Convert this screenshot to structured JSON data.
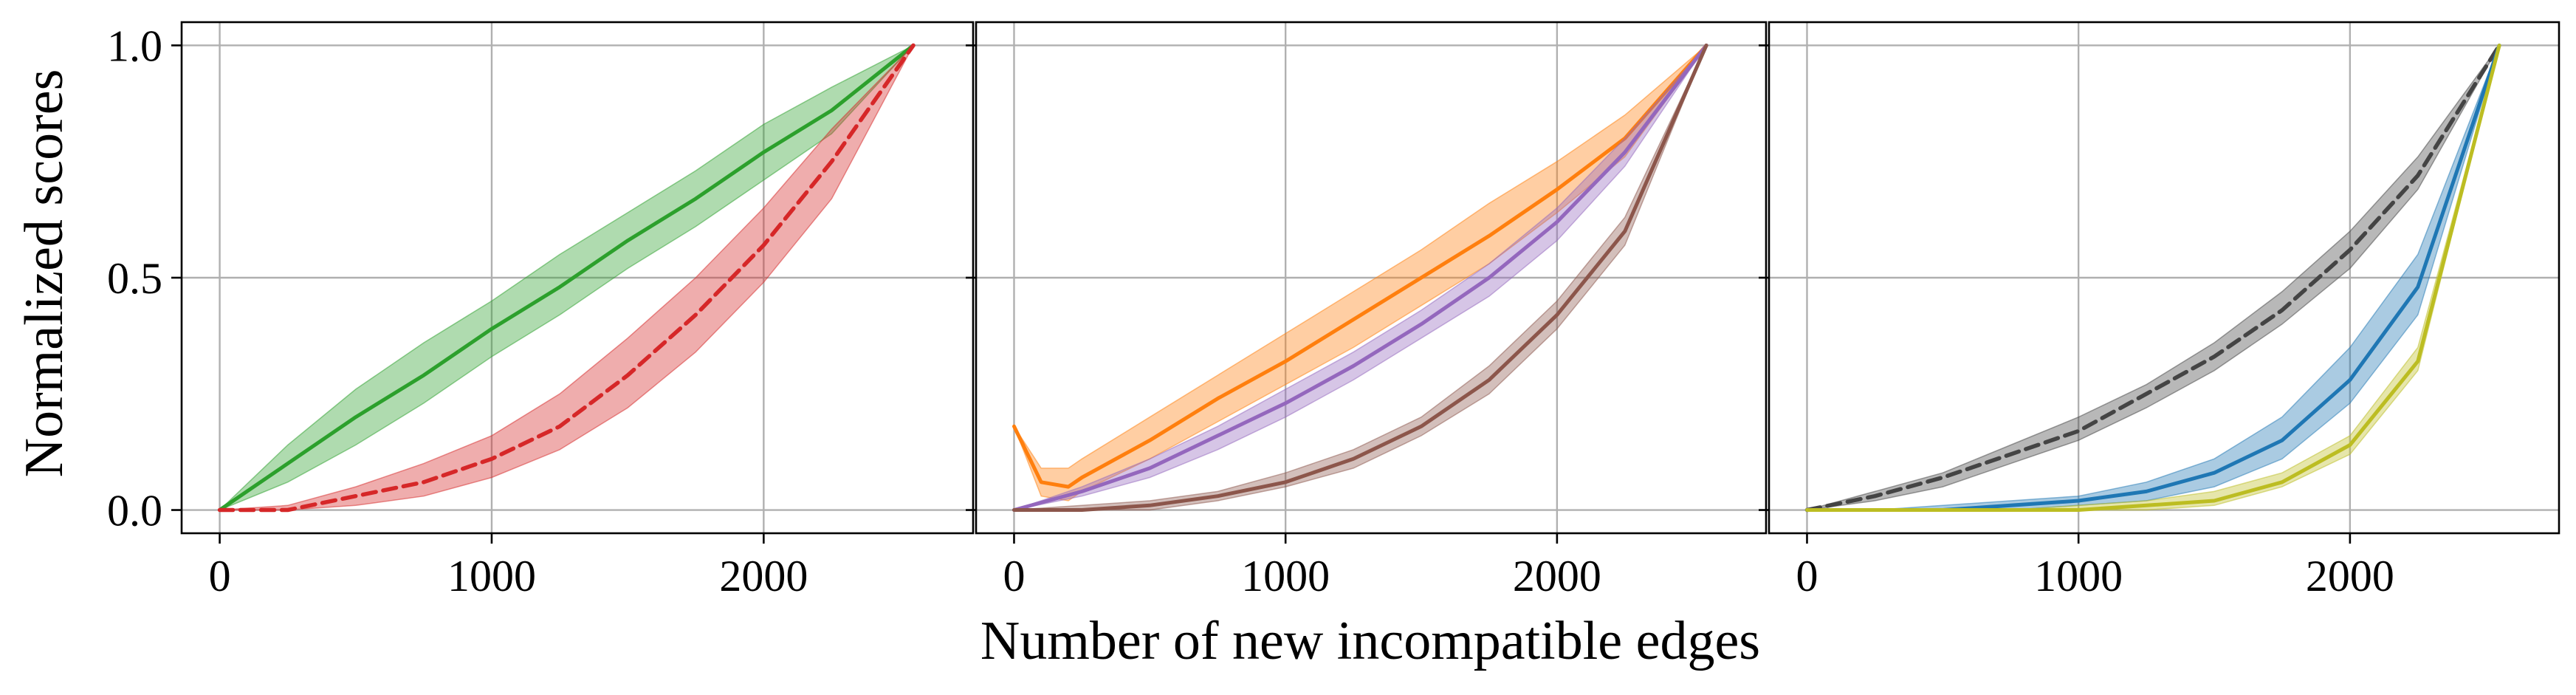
{
  "chart_data": {
    "type": "line",
    "layout": "1x3 panels, shared y axis",
    "xlabel": "Number of new incompatible edges",
    "ylabel": "Normalized scores",
    "grid": true,
    "xlim": [
      -140,
      2770
    ],
    "ylim": [
      -0.05,
      1.05
    ],
    "xticks": [
      0,
      1000,
      2000
    ],
    "yticks": [
      0.0,
      0.5,
      1.0
    ],
    "xtick_labels": [
      "0",
      "1000",
      "2000"
    ],
    "ytick_labels": [
      "0.0",
      "0.5",
      "1.0"
    ],
    "x": [
      0,
      250,
      500,
      750,
      1000,
      1250,
      1500,
      1750,
      2000,
      2250,
      2550
    ],
    "panels": [
      {
        "series": [
          {
            "color": "#2ca02c",
            "style": "solid",
            "values": [
              0.0,
              0.1,
              0.2,
              0.29,
              0.39,
              0.48,
              0.58,
              0.67,
              0.77,
              0.86,
              1.0
            ],
            "lower": [
              0.0,
              0.06,
              0.14,
              0.23,
              0.33,
              0.42,
              0.52,
              0.61,
              0.71,
              0.81,
              1.0
            ],
            "upper": [
              0.0,
              0.14,
              0.26,
              0.36,
              0.45,
              0.55,
              0.64,
              0.73,
              0.83,
              0.91,
              1.0
            ]
          },
          {
            "color": "#d62728",
            "style": "dashed",
            "values": [
              0.0,
              0.0,
              0.03,
              0.06,
              0.11,
              0.18,
              0.29,
              0.42,
              0.57,
              0.75,
              1.0
            ],
            "lower": [
              0.0,
              0.0,
              0.01,
              0.03,
              0.07,
              0.13,
              0.22,
              0.34,
              0.49,
              0.67,
              1.0
            ],
            "upper": [
              0.0,
              0.01,
              0.05,
              0.1,
              0.16,
              0.25,
              0.37,
              0.5,
              0.65,
              0.82,
              1.0
            ]
          }
        ]
      },
      {
        "series": [
          {
            "color": "#ff7f0e",
            "style": "solid",
            "x": [
              0,
              100,
              200,
              250,
              500,
              750,
              1000,
              1250,
              1500,
              1750,
              2000,
              2250,
              2550
            ],
            "values": [
              0.18,
              0.06,
              0.05,
              0.07,
              0.15,
              0.24,
              0.32,
              0.41,
              0.5,
              0.59,
              0.69,
              0.8,
              1.0
            ],
            "lower": [
              0.18,
              0.03,
              0.02,
              0.04,
              0.11,
              0.19,
              0.27,
              0.35,
              0.44,
              0.53,
              0.64,
              0.76,
              1.0
            ],
            "upper": [
              0.18,
              0.09,
              0.09,
              0.11,
              0.2,
              0.29,
              0.38,
              0.47,
              0.56,
              0.66,
              0.75,
              0.85,
              1.0
            ]
          },
          {
            "color": "#9467bd",
            "style": "solid",
            "values": [
              0.0,
              0.04,
              0.09,
              0.16,
              0.23,
              0.31,
              0.4,
              0.5,
              0.62,
              0.77,
              1.0
            ],
            "lower": [
              0.0,
              0.03,
              0.07,
              0.13,
              0.2,
              0.28,
              0.37,
              0.46,
              0.58,
              0.74,
              1.0
            ],
            "upper": [
              0.0,
              0.05,
              0.11,
              0.18,
              0.26,
              0.34,
              0.43,
              0.53,
              0.65,
              0.8,
              1.0
            ]
          },
          {
            "color": "#8c564b",
            "style": "solid",
            "values": [
              0.0,
              0.0,
              0.01,
              0.03,
              0.06,
              0.11,
              0.18,
              0.28,
              0.42,
              0.6,
              1.0
            ],
            "lower": [
              0.0,
              0.0,
              0.0,
              0.02,
              0.05,
              0.09,
              0.16,
              0.25,
              0.39,
              0.57,
              1.0
            ],
            "upper": [
              0.0,
              0.01,
              0.02,
              0.04,
              0.08,
              0.13,
              0.2,
              0.31,
              0.45,
              0.63,
              1.0
            ]
          }
        ]
      },
      {
        "series": [
          {
            "color": "#444444",
            "style": "dashed",
            "values": [
              0.0,
              0.03,
              0.07,
              0.12,
              0.17,
              0.25,
              0.33,
              0.43,
              0.56,
              0.72,
              1.0
            ],
            "lower": [
              0.0,
              0.02,
              0.05,
              0.1,
              0.15,
              0.22,
              0.3,
              0.4,
              0.52,
              0.69,
              1.0
            ],
            "upper": [
              0.0,
              0.04,
              0.08,
              0.14,
              0.2,
              0.27,
              0.36,
              0.47,
              0.6,
              0.76,
              1.0
            ]
          },
          {
            "color": "#1f77b4",
            "style": "solid",
            "values": [
              0.0,
              0.0,
              0.0,
              0.01,
              0.02,
              0.04,
              0.08,
              0.15,
              0.28,
              0.48,
              1.0
            ],
            "lower": [
              0.0,
              0.0,
              0.0,
              0.0,
              0.01,
              0.02,
              0.05,
              0.11,
              0.23,
              0.42,
              1.0
            ],
            "upper": [
              0.0,
              0.0,
              0.01,
              0.02,
              0.03,
              0.06,
              0.11,
              0.2,
              0.35,
              0.55,
              1.0
            ]
          },
          {
            "color": "#bcbd22",
            "style": "solid",
            "values": [
              0.0,
              0.0,
              0.0,
              0.0,
              0.0,
              0.01,
              0.02,
              0.06,
              0.14,
              0.32,
              1.0
            ],
            "lower": [
              0.0,
              0.0,
              0.0,
              0.0,
              0.0,
              0.0,
              0.01,
              0.05,
              0.12,
              0.3,
              1.0
            ],
            "upper": [
              0.0,
              0.0,
              0.0,
              0.0,
              0.01,
              0.02,
              0.04,
              0.08,
              0.16,
              0.35,
              1.0
            ]
          }
        ]
      }
    ]
  }
}
